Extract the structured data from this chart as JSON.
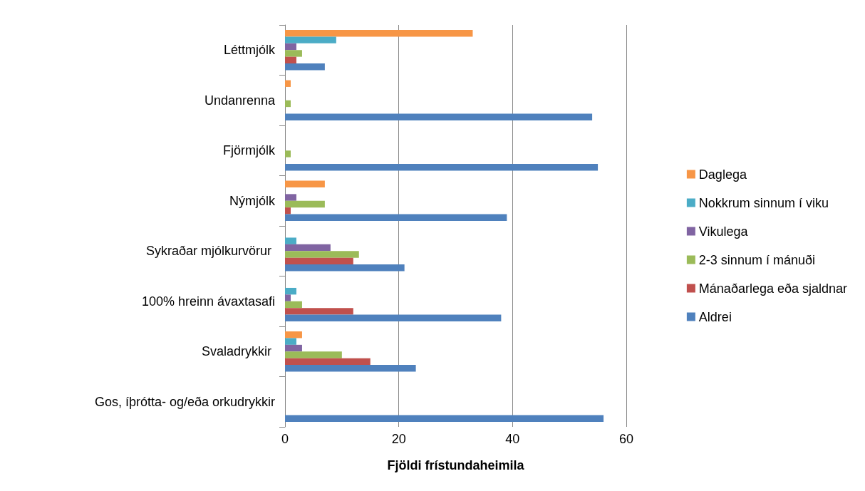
{
  "chart_data": {
    "type": "bar",
    "orientation": "horizontal",
    "xlabel": "Fjöldi frístundaheimila",
    "categories": [
      "Léttmjólk",
      "Undanrenna",
      "Fjörmjólk",
      "Nýmjólk",
      "Sykraðar mjólkurvörur ",
      "100% hreinn ávaxtasafi",
      "Svaladrykkir ",
      "Gos, íþrótta- og/eða orkudrykkir"
    ],
    "series": [
      {
        "name": "Daglega",
        "color": "#f79646",
        "values": [
          33,
          1,
          0,
          7,
          0,
          0,
          3,
          0
        ]
      },
      {
        "name": "Nokkrum sinnum í viku",
        "color": "#4bacc6",
        "values": [
          9,
          0,
          0,
          0,
          2,
          2,
          2,
          0
        ]
      },
      {
        "name": "Vikulega",
        "color": "#8064a2",
        "values": [
          2,
          0,
          0,
          2,
          8,
          1,
          3,
          0
        ]
      },
      {
        "name": "2-3 sinnum í mánuði",
        "color": "#9bbb59",
        "values": [
          3,
          1,
          1,
          7,
          13,
          3,
          10,
          0
        ]
      },
      {
        "name": "Mánaðarlega eða sjaldnar",
        "color": "#c0504d",
        "values": [
          2,
          0,
          0,
          1,
          12,
          12,
          15,
          0
        ]
      },
      {
        "name": "Aldrei",
        "color": "#4f81bd",
        "values": [
          7,
          54,
          55,
          39,
          21,
          38,
          23,
          56
        ]
      }
    ],
    "xlim": [
      0,
      60
    ],
    "xticks": [
      0,
      20,
      40,
      60
    ],
    "grid": "x",
    "legend": "right"
  }
}
